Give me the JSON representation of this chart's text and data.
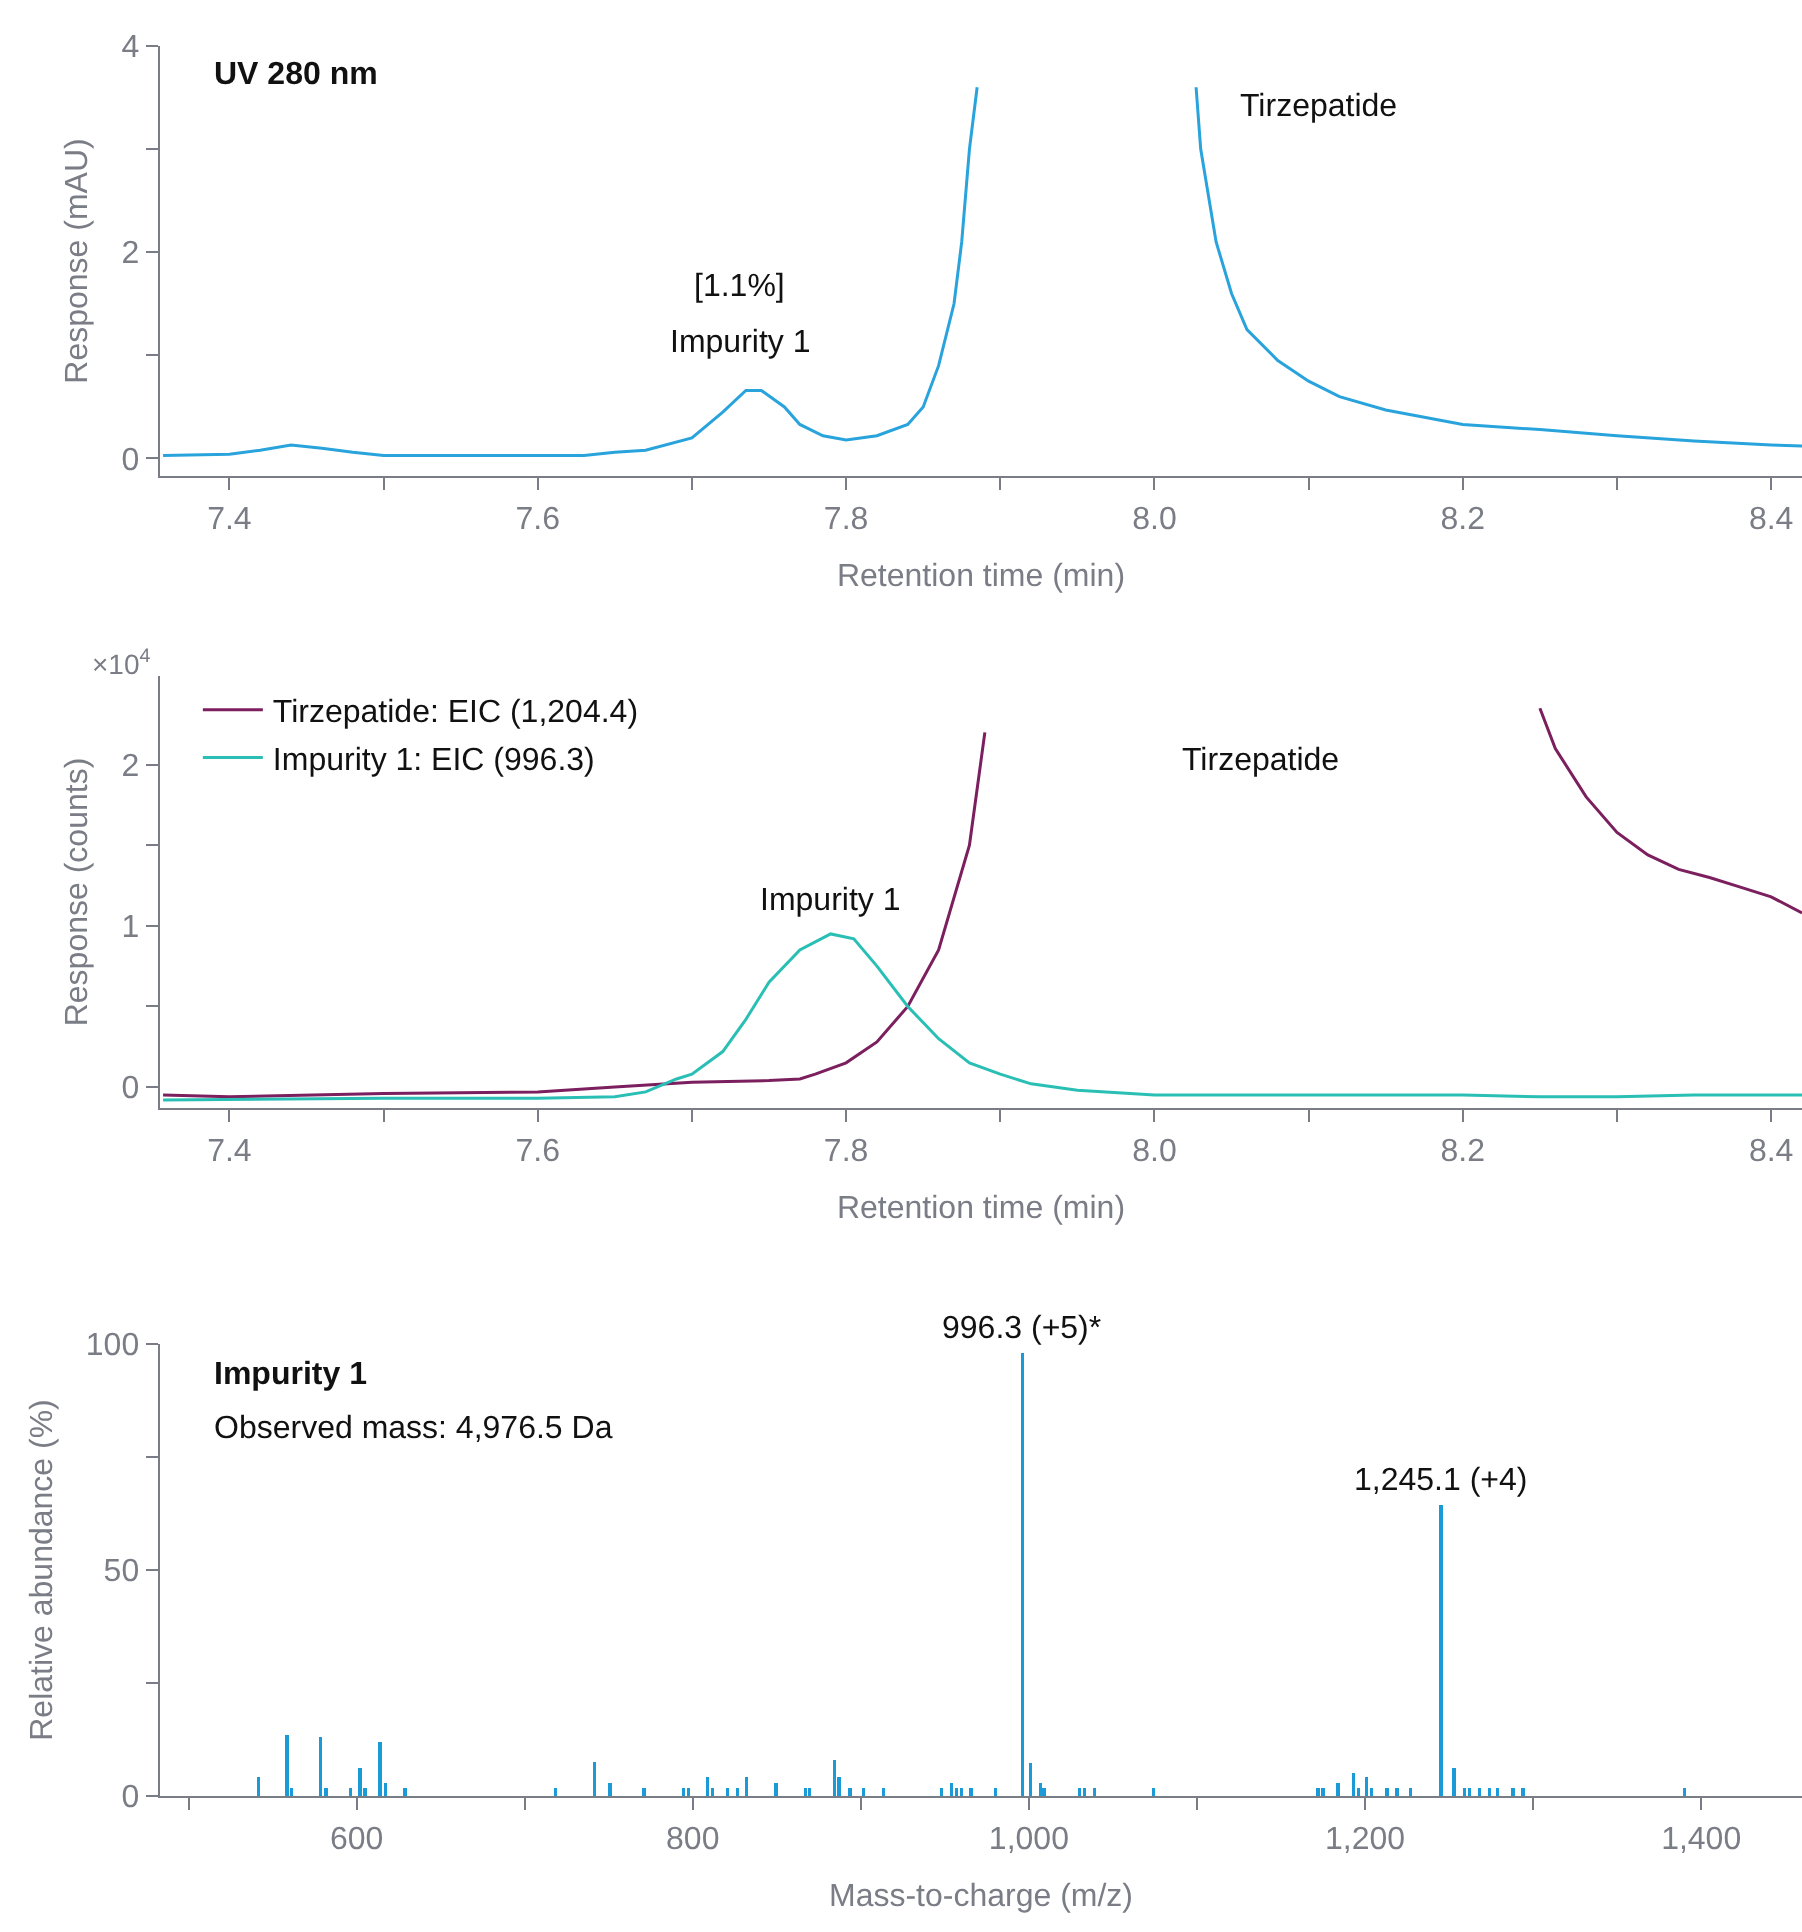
{
  "chart_data": [
    {
      "type": "line",
      "title": "UV 280 nm",
      "xlabel": "Retention time (min)",
      "ylabel": "Response (mAU)",
      "xlim": [
        7.355,
        8.42
      ],
      "ylim": [
        -0.17,
        4
      ],
      "xticks": [
        7.4,
        {
          "value": 7.5,
          "label": null
        },
        7.6,
        {
          "value": 7.7,
          "label": null
        },
        7.8,
        {
          "value": 7.9,
          "label": null
        },
        {
          "value": 8.0,
          "label": "8.0"
        },
        {
          "value": 8.1,
          "label": null
        },
        8.2,
        {
          "value": 8.3,
          "label": null
        },
        8.4
      ],
      "yticks": [
        0,
        {
          "value": 1,
          "label": null
        },
        2,
        {
          "value": 3,
          "label": null
        },
        4
      ],
      "grid": false,
      "legend": false,
      "marker": "none",
      "line_style": "solid",
      "series": [
        {
          "color": "#29a3dc",
          "x": [
            7.357,
            7.4,
            7.42,
            7.44,
            7.46,
            7.48,
            7.5,
            7.55,
            7.63,
            7.65,
            7.67,
            7.7,
            7.72,
            7.735,
            7.745,
            7.76,
            7.77,
            7.785,
            7.8,
            7.82,
            7.84,
            7.85,
            7.86,
            7.87,
            7.875,
            7.88,
            7.885,
            7.95,
            8.027,
            8.03,
            8.04,
            8.05,
            8.06,
            8.08,
            8.1,
            8.12,
            8.15,
            8.2,
            8.25,
            8.3,
            8.35,
            8.4,
            8.42
          ],
          "values": [
            0.03,
            0.04,
            0.08,
            0.13,
            0.1,
            0.06,
            0.03,
            0.03,
            0.03,
            0.06,
            0.08,
            0.2,
            0.45,
            0.66,
            0.66,
            0.5,
            0.33,
            0.22,
            0.18,
            0.22,
            0.33,
            0.5,
            0.9,
            1.5,
            2.1,
            3.0,
            3.6,
            null,
            3.6,
            3.0,
            2.1,
            1.6,
            1.25,
            0.95,
            0.75,
            0.6,
            0.47,
            0.33,
            0.28,
            0.22,
            0.17,
            0.13,
            0.12
          ]
        }
      ],
      "annotations": [
        "[1.1%]",
        "Impurity 1",
        "Tirzepatide"
      ]
    },
    {
      "type": "line",
      "xlabel": "Retention time (min)",
      "ylabel": "Response (counts)",
      "xlim": [
        7.355,
        8.42
      ],
      "ylim": [
        -0.13,
        2.55
      ],
      "xticks": [
        7.4,
        {
          "value": 7.5,
          "label": null
        },
        7.6,
        {
          "value": 7.7,
          "label": null
        },
        7.8,
        {
          "value": 7.9,
          "label": null
        },
        {
          "value": 8.0,
          "label": "8.0"
        },
        {
          "value": 8.1,
          "label": null
        },
        8.2,
        {
          "value": 8.3,
          "label": null
        },
        8.4
      ],
      "yticks": [
        0,
        {
          "value": 0.5,
          "label": null
        },
        1,
        {
          "value": 1.5,
          "label": null
        },
        2
      ],
      "grid": false,
      "legend": "top left",
      "marker": "none",
      "line_style": "solid",
      "series": [
        {
          "name": "Tirzepatide: EIC (1,204.4)",
          "color": "#7b1f5e",
          "x": [
            7.357,
            7.4,
            7.5,
            7.6,
            7.65,
            7.7,
            7.75,
            7.77,
            7.78,
            7.8,
            7.82,
            7.84,
            7.86,
            7.88,
            7.89,
            8.07,
            8.25,
            8.26,
            8.28,
            8.3,
            8.32,
            8.34,
            8.36,
            8.38,
            8.4,
            8.42
          ],
          "values": [
            -0.05,
            -0.06,
            -0.04,
            -0.03,
            0,
            0.03,
            0.04,
            0.05,
            0.08,
            0.15,
            0.28,
            0.5,
            0.85,
            1.5,
            2.2,
            null,
            2.35,
            2.1,
            1.8,
            1.58,
            1.44,
            1.35,
            1.3,
            1.24,
            1.18,
            1.08
          ]
        },
        {
          "name": "Impurity 1: EIC (996.3)",
          "color": "#2abfb4",
          "x": [
            7.357,
            7.5,
            7.6,
            7.65,
            7.67,
            7.69,
            7.7,
            7.72,
            7.735,
            7.75,
            7.77,
            7.79,
            7.805,
            7.82,
            7.84,
            7.86,
            7.88,
            7.9,
            7.92,
            7.95,
            8.0,
            8.1,
            8.2,
            8.25,
            8.3,
            8.35,
            8.42
          ],
          "values": [
            -0.08,
            -0.07,
            -0.07,
            -0.06,
            -0.03,
            0.05,
            0.08,
            0.22,
            0.42,
            0.65,
            0.85,
            0.95,
            0.92,
            0.75,
            0.5,
            0.3,
            0.15,
            0.08,
            0.02,
            -0.02,
            -0.05,
            -0.05,
            -0.05,
            -0.06,
            -0.06,
            -0.05,
            -0.05
          ]
        }
      ],
      "annotations": [
        "×10$^{4}$",
        {
          "text": "Impurity 1",
          "x": 7.79,
          "y": 1.0
        },
        "Tirzepatide"
      ]
    },
    {
      "type": "bar",
      "title": "Impurity 1",
      "subtitle": "Observed mass: 4,976.5 Da",
      "xlabel": "Mass-to-charge (m/z)",
      "ylabel": "Relative abundance (%)",
      "xlim": [
        483,
        1460
      ],
      "ylim": [
        0,
        100
      ],
      "xticks": [
        {
          "value": 500,
          "label": null
        },
        600,
        {
          "value": 700,
          "label": null
        },
        800,
        {
          "value": 900,
          "label": null
        },
        {
          "value": 1000,
          "label": "1,000"
        },
        {
          "value": 1100,
          "label": null
        },
        {
          "value": 1200,
          "label": "1,200"
        },
        {
          "value": 1300,
          "label": null
        },
        {
          "value": 1400,
          "label": "1,400"
        }
      ],
      "yticks": [
        0,
        {
          "value": 25,
          "label": null
        },
        50,
        {
          "value": 75,
          "label": null
        },
        100
      ],
      "grid": false,
      "legend": false,
      "series": [
        {
          "color": "#1a9ad6",
          "x": [
            541.5,
            558.6,
            561.4,
            578.5,
            581.7,
            596.5,
            602,
            605,
            614,
            617.2,
            628.8,
            718.5,
            741.6,
            750.8,
            771,
            794.3,
            797.4,
            808.6,
            811.8,
            820.6,
            826.6,
            832.1,
            849.6,
            867.2,
            869.6,
            884.3,
            887.1,
            893.5,
            901.5,
            913.4,
            948.1,
            954.1,
            956.9,
            960,
            965.6,
            980,
            996.3,
            1001,
            1007,
            1009,
            1030,
            1033,
            1039,
            1074,
            1172,
            1175,
            1184,
            1193,
            1196,
            1201,
            1204,
            1213,
            1219,
            1227,
            1245.1,
            1253,
            1259,
            1262,
            1268,
            1274,
            1279,
            1288,
            1294,
            1390
          ],
          "values": [
            4.2,
            13.5,
            1.8,
            13,
            1.8,
            1.8,
            6.2,
            1.8,
            12,
            2.9,
            1.8,
            1.8,
            7.5,
            2.9,
            1.8,
            1.8,
            1.8,
            4.2,
            1.8,
            1.8,
            1.8,
            4.2,
            2.9,
            1.8,
            1.8,
            8,
            4.2,
            1.8,
            1.8,
            1.8,
            1.8,
            2.9,
            1.8,
            1.8,
            1.8,
            1.8,
            98,
            7.4,
            2.9,
            1.8,
            1.8,
            1.8,
            1.8,
            1.8,
            1.8,
            1.8,
            2.9,
            5.2,
            1.8,
            4.2,
            1.8,
            1.8,
            1.8,
            1.8,
            64.3,
            6.2,
            1.8,
            1.8,
            1.8,
            1.8,
            1.8,
            1.8,
            1.8,
            1.8
          ]
        }
      ],
      "annotations": [
        {
          "text": "996.3 (+5)*",
          "x": 996.3,
          "y": 98
        },
        {
          "text": "1,245.1 (+4)",
          "x": 1245.1,
          "y": 64.3
        }
      ]
    }
  ]
}
